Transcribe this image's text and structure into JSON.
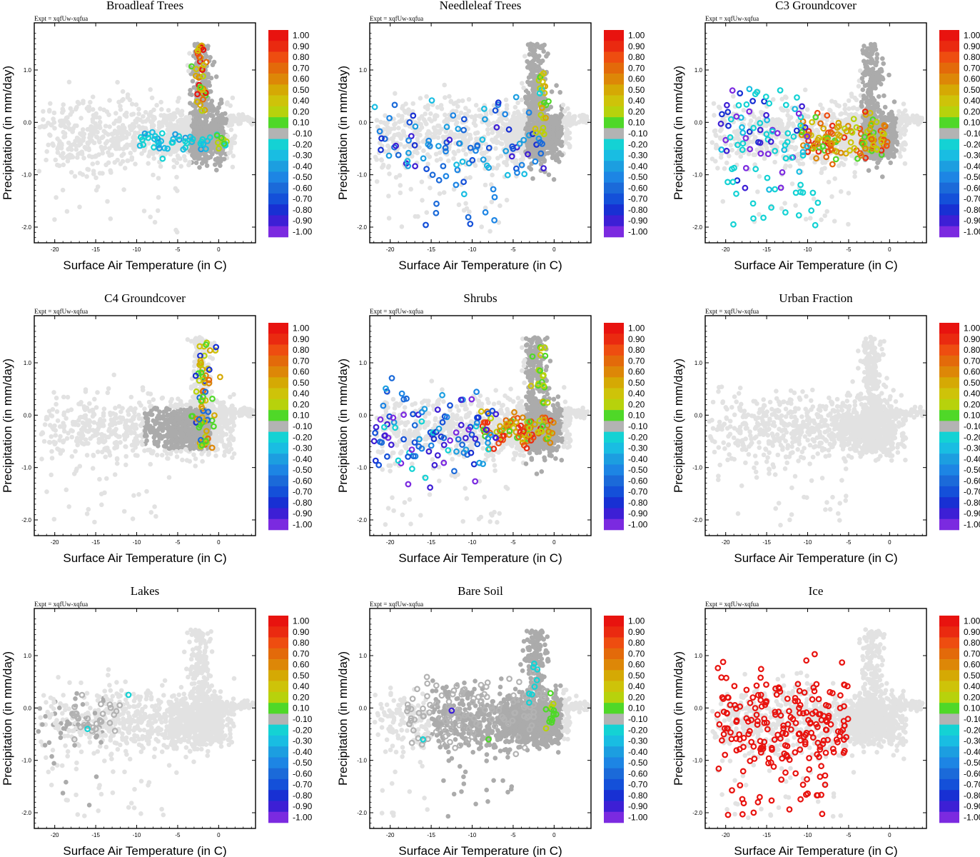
{
  "figure": {
    "expt_label": "Expt = xqfUw-xqfua",
    "xlabel": "Surface Air Temperature (in C)",
    "ylabel": "Precipitation (in mm/day)",
    "xlim": [
      -22.5,
      4.5
    ],
    "ylim": [
      -2.3,
      1.9
    ],
    "xticks": [
      -20,
      -15,
      -10,
      -5,
      0
    ],
    "xtick_labels": [
      "-20",
      "-15",
      "-10",
      "-5",
      "0"
    ],
    "yticks": [
      -2,
      -1,
      0,
      1
    ],
    "ytick_labels": [
      "-2.0",
      "-1.0",
      "0.0",
      "1.0"
    ],
    "colorbar": {
      "labels": [
        "1.00",
        "0.90",
        "0.80",
        "0.70",
        "0.60",
        "0.50",
        "0.40",
        "0.20",
        "0.10",
        "-0.10",
        "-0.20",
        "-0.30",
        "-0.40",
        "-0.50",
        "-0.60",
        "-0.70",
        "-0.80",
        "-0.90",
        "-1.00"
      ],
      "colors": [
        "#e8130f",
        "#ea2a10",
        "#ee4d10",
        "#e36a0a",
        "#dd8707",
        "#d5a904",
        "#cec309",
        "#b7d20c",
        "#4fd828",
        "#b3b3b3",
        "#14d2d4",
        "#19bde2",
        "#1c9ee0",
        "#1d85e4",
        "#1b6ad9",
        "#1450d9",
        "#1830d3",
        "#3d1fd5",
        "#7b2ae0"
      ]
    },
    "background_colors": {
      "light": "#e2e2e2",
      "dark": "#ababab"
    }
  },
  "chart_data": [
    {
      "type": "scatter",
      "title": "Broadleaf Trees",
      "pattern": "broadleaf",
      "seed": 11
    },
    {
      "type": "scatter",
      "title": "Needleleaf Trees",
      "pattern": "needleleaf",
      "seed": 23
    },
    {
      "type": "scatter",
      "title": "C3 Groundcover",
      "pattern": "c3",
      "seed": 37
    },
    {
      "type": "scatter",
      "title": "C4 Groundcover",
      "pattern": "c4",
      "seed": 41
    },
    {
      "type": "scatter",
      "title": "Shrubs",
      "pattern": "shrubs",
      "seed": 53
    },
    {
      "type": "scatter",
      "title": "Urban Fraction",
      "pattern": "urban",
      "seed": 67
    },
    {
      "type": "scatter",
      "title": "Lakes",
      "pattern": "lakes",
      "seed": 71
    },
    {
      "type": "scatter",
      "title": "Bare Soil",
      "pattern": "baresoil",
      "seed": 83
    },
    {
      "type": "scatter",
      "title": "Ice",
      "pattern": "ice",
      "seed": 97
    }
  ]
}
